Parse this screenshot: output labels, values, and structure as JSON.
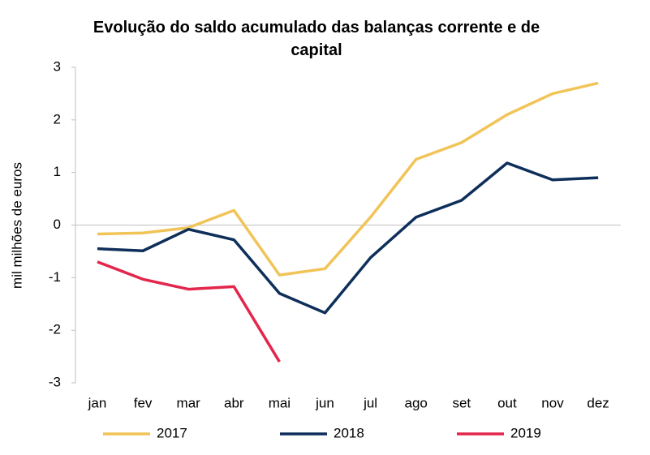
{
  "chart_data": {
    "type": "line",
    "title": "Evolução do saldo acumulado das balanças corrente e de capital",
    "ylabel": "mil milhões de euros",
    "categories": [
      "jan",
      "fev",
      "mar",
      "abr",
      "mai",
      "jun",
      "jul",
      "ago",
      "set",
      "out",
      "nov",
      "dez"
    ],
    "series": [
      {
        "name": "2017",
        "color": "#f1c458",
        "values": [
          -0.17,
          -0.15,
          -0.05,
          0.28,
          -0.95,
          -0.83,
          0.15,
          1.25,
          1.57,
          2.1,
          2.5,
          2.7
        ]
      },
      {
        "name": "2018",
        "color": "#0e2f5a",
        "values": [
          -0.45,
          -0.49,
          -0.08,
          -0.28,
          -1.3,
          -1.67,
          -0.62,
          0.15,
          0.47,
          1.18,
          0.86,
          0.9
        ]
      },
      {
        "name": "2019",
        "color": "#e3264b",
        "values": [
          -0.7,
          -1.03,
          -1.22,
          -1.17,
          -2.6,
          null,
          null,
          null,
          null,
          null,
          null,
          null
        ]
      }
    ],
    "ylim": [
      -3,
      3
    ],
    "yticks": [
      -3,
      -2,
      -1,
      0,
      1,
      2,
      3
    ],
    "grid": false,
    "legend": "bottom"
  }
}
